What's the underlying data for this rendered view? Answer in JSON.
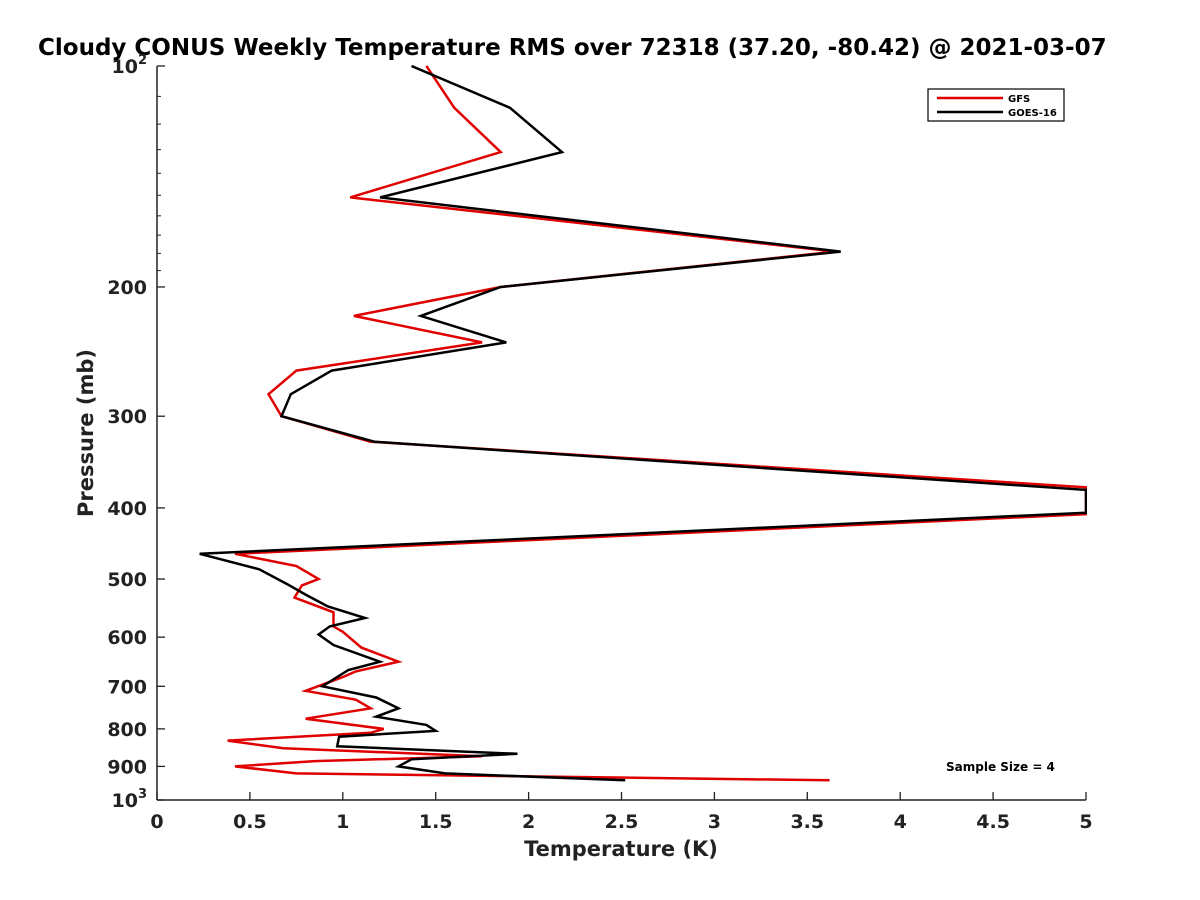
{
  "chart_data": {
    "type": "line",
    "title": "Cloudy CONUS Weekly Temperature RMS over 72318 (37.20, -80.42) @ 2021-03-07",
    "xlabel": "Temperature (K)",
    "ylabel": "Pressure (mb)",
    "xlim": [
      0,
      5
    ],
    "ylim": [
      1000,
      100
    ],
    "yscale": "log",
    "x_ticks": [
      "0",
      "0.5",
      "1",
      "1.5",
      "2",
      "2.5",
      "3",
      "3.5",
      "4",
      "4.5",
      "5"
    ],
    "x_tick_values": [
      0,
      0.5,
      1,
      1.5,
      2,
      2.5,
      3,
      3.5,
      4,
      4.5,
      5
    ],
    "y_ticks": [
      {
        "value": 100,
        "base": "10",
        "exp": "2"
      },
      {
        "value": 200,
        "label": "200"
      },
      {
        "value": 300,
        "label": "300"
      },
      {
        "value": 400,
        "label": "400"
      },
      {
        "value": 500,
        "label": "500"
      },
      {
        "value": 600,
        "label": "600"
      },
      {
        "value": 700,
        "label": "700"
      },
      {
        "value": 800,
        "label": "800"
      },
      {
        "value": 900,
        "label": "900"
      },
      {
        "value": 1000,
        "base": "10",
        "exp": "3"
      }
    ],
    "grid": false,
    "legend_position": "top-right",
    "annotation": "Sample Size = 4",
    "series": [
      {
        "name": "GFS",
        "color": "#e00000",
        "points": [
          [
            1.45,
            100
          ],
          [
            1.6,
            114
          ],
          [
            1.85,
            131
          ],
          [
            1.04,
            151
          ],
          [
            3.65,
            179
          ],
          [
            1.85,
            200
          ],
          [
            1.06,
            219
          ],
          [
            1.75,
            238
          ],
          [
            0.75,
            260
          ],
          [
            0.6,
            280
          ],
          [
            0.67,
            300
          ],
          [
            1.15,
            325
          ],
          [
            5.0,
            375
          ],
          [
            5.0,
            408
          ],
          [
            0.42,
            462
          ],
          [
            0.75,
            480
          ],
          [
            0.87,
            500
          ],
          [
            0.78,
            510
          ],
          [
            0.74,
            530
          ],
          [
            0.95,
            555
          ],
          [
            0.95,
            580
          ],
          [
            1.0,
            590
          ],
          [
            1.1,
            620
          ],
          [
            1.3,
            648
          ],
          [
            1.07,
            668
          ],
          [
            1.0,
            680
          ],
          [
            0.8,
            710
          ],
          [
            1.07,
            730
          ],
          [
            1.15,
            750
          ],
          [
            0.8,
            775
          ],
          [
            1.22,
            800
          ],
          [
            1.15,
            810
          ],
          [
            0.38,
            830
          ],
          [
            0.68,
            850
          ],
          [
            1.75,
            872
          ],
          [
            0.85,
            885
          ],
          [
            0.42,
            900
          ],
          [
            0.75,
            920
          ],
          [
            3.62,
            940
          ]
        ]
      },
      {
        "name": "GOES-16",
        "color": "#000000",
        "points": [
          [
            1.37,
            100
          ],
          [
            1.9,
            114
          ],
          [
            2.18,
            131
          ],
          [
            1.2,
            151
          ],
          [
            3.68,
            179
          ],
          [
            1.85,
            200
          ],
          [
            1.42,
            219
          ],
          [
            1.88,
            238
          ],
          [
            0.94,
            260
          ],
          [
            0.72,
            280
          ],
          [
            0.67,
            300
          ],
          [
            1.17,
            325
          ],
          [
            5.0,
            378
          ],
          [
            5.0,
            406
          ],
          [
            0.23,
            462
          ],
          [
            0.55,
            485
          ],
          [
            0.7,
            508
          ],
          [
            0.8,
            525
          ],
          [
            0.92,
            545
          ],
          [
            1.12,
            565
          ],
          [
            0.93,
            580
          ],
          [
            0.87,
            595
          ],
          [
            0.95,
            615
          ],
          [
            1.2,
            648
          ],
          [
            1.03,
            665
          ],
          [
            0.89,
            700
          ],
          [
            1.18,
            725
          ],
          [
            1.3,
            750
          ],
          [
            1.18,
            770
          ],
          [
            1.45,
            790
          ],
          [
            1.5,
            805
          ],
          [
            0.98,
            820
          ],
          [
            0.97,
            845
          ],
          [
            1.94,
            865
          ],
          [
            1.37,
            880
          ],
          [
            1.3,
            900
          ],
          [
            1.55,
            920
          ],
          [
            2.52,
            940
          ]
        ]
      }
    ]
  }
}
